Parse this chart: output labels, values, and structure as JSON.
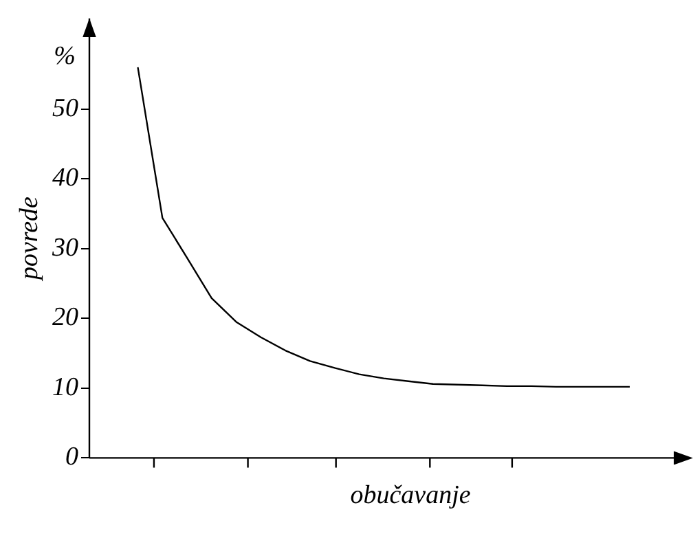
{
  "chart_data": {
    "type": "line",
    "xlabel": "obučavanje",
    "ylabel": "povrede",
    "annotations": [
      "%"
    ],
    "categories": [
      null,
      null,
      null,
      null,
      null,
      null,
      null,
      null,
      null,
      null,
      null,
      null,
      null,
      null,
      null,
      null,
      null,
      null,
      null,
      null,
      null
    ],
    "series": [
      {
        "color": "#000000",
        "values": [
          56,
          34.4,
          28.7,
          22.9,
          19.5,
          17.3,
          15.4,
          13.9,
          12.9,
          12,
          11.4,
          11,
          10.6,
          10.5,
          10.4,
          10.3,
          10.3,
          10.2,
          10.2,
          10.2,
          10.2
        ]
      }
    ],
    "ylim": [
      0,
      63
    ],
    "yticks": [
      0,
      10,
      20,
      30,
      40,
      50
    ],
    "legend": false,
    "marker": "none",
    "line_style": "solid"
  }
}
